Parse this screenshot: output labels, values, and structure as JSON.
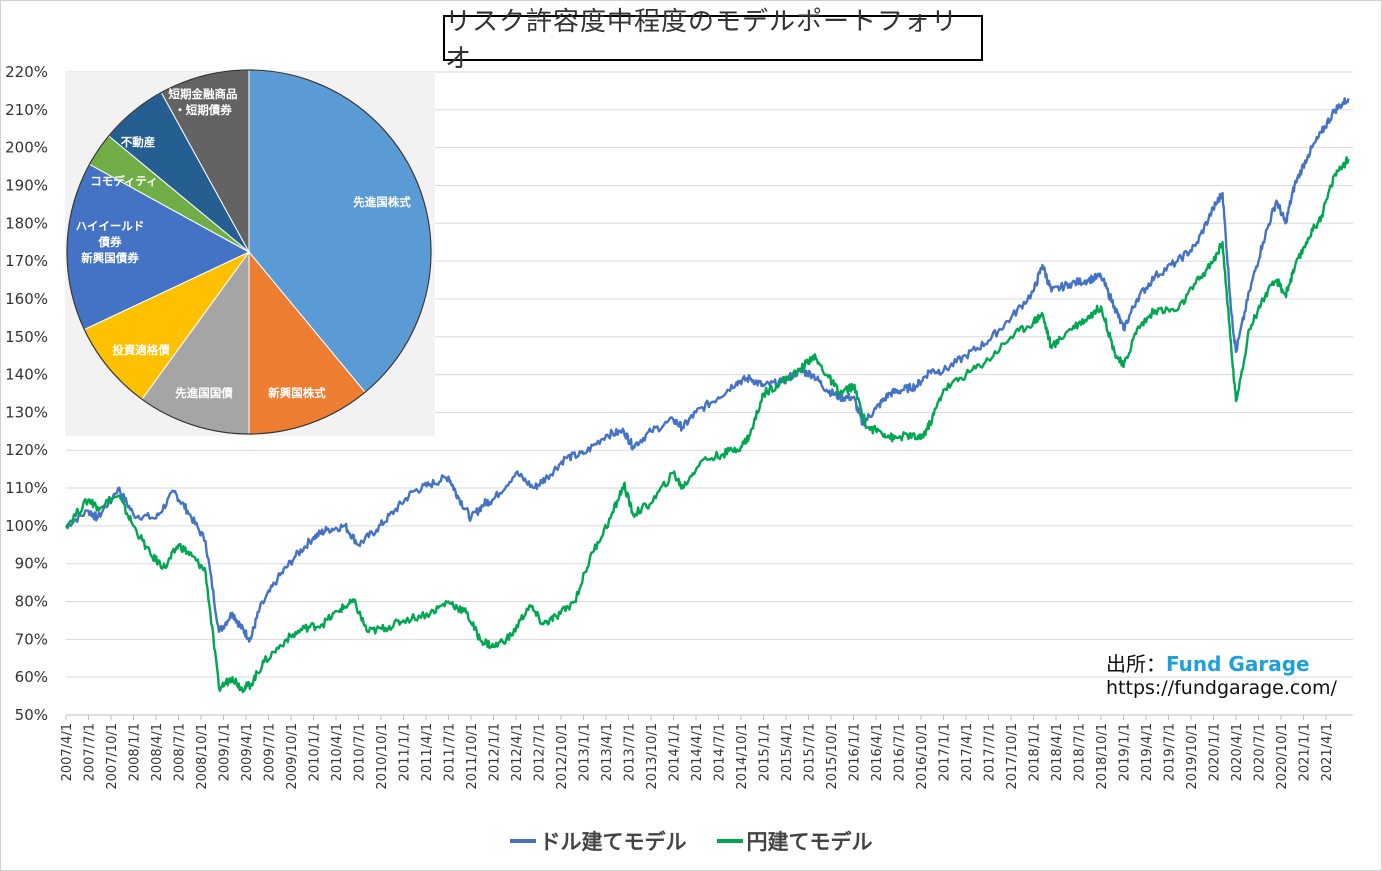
{
  "chart_data": [
    {
      "type": "line",
      "title": "リスク許容度中程度のモデルポートフォリオ",
      "y_ticks": [
        "50%",
        "60%",
        "70%",
        "80%",
        "90%",
        "100%",
        "110%",
        "120%",
        "130%",
        "140%",
        "150%",
        "160%",
        "170%",
        "180%",
        "190%",
        "200%",
        "210%",
        "220%"
      ],
      "ylim": [
        50,
        220
      ],
      "x_ticks": [
        "2007/4/1",
        "2007/7/1",
        "2007/10/1",
        "2008/1/1",
        "2008/4/1",
        "2008/7/1",
        "2008/10/1",
        "2009/1/1",
        "2009/4/1",
        "2009/7/1",
        "2009/10/1",
        "2010/1/1",
        "2010/4/1",
        "2010/7/1",
        "2010/10/1",
        "2011/1/1",
        "2011/4/1",
        "2011/7/1",
        "2011/10/1",
        "2012/1/1",
        "2012/4/1",
        "2012/7/1",
        "2012/10/1",
        "2013/1/1",
        "2013/4/1",
        "2013/7/1",
        "2013/10/1",
        "2014/1/1",
        "2014/4/1",
        "2014/7/1",
        "2014/10/1",
        "2015/1/1",
        "2015/4/1",
        "2015/7/1",
        "2015/10/1",
        "2016/1/1",
        "2016/4/1",
        "2016/7/1",
        "2016/10/1",
        "2017/1/1",
        "2017/4/1",
        "2017/7/1",
        "2017/10/1",
        "2018/1/1",
        "2018/4/1",
        "2018/7/1",
        "2018/10/1",
        "2019/1/1",
        "2019/4/1",
        "2019/7/1",
        "2019/10/1",
        "2020/1/1",
        "2020/4/1",
        "2020/7/1",
        "2020/10/1",
        "2021/1/1",
        "2021/4/1"
      ],
      "series": [
        {
          "name": "ドル建てモデル",
          "color": "#4472c4",
          "points": [
            [
              2007.25,
              100
            ],
            [
              2007.5,
              104
            ],
            [
              2007.6,
              102
            ],
            [
              2007.83,
              110
            ],
            [
              2008.0,
              103
            ],
            [
              2008.25,
              102
            ],
            [
              2008.45,
              109
            ],
            [
              2008.6,
              104
            ],
            [
              2008.8,
              96
            ],
            [
              2008.95,
              72
            ],
            [
              2009.1,
              77
            ],
            [
              2009.2,
              73
            ],
            [
              2009.3,
              70
            ],
            [
              2009.4,
              78
            ],
            [
              2009.6,
              86
            ],
            [
              2009.8,
              92
            ],
            [
              2010.0,
              97
            ],
            [
              2010.15,
              99
            ],
            [
              2010.35,
              100
            ],
            [
              2010.5,
              95
            ],
            [
              2010.7,
              99
            ],
            [
              2010.9,
              104
            ],
            [
              2011.1,
              109
            ],
            [
              2011.3,
              111
            ],
            [
              2011.5,
              113
            ],
            [
              2011.6,
              108
            ],
            [
              2011.75,
              102
            ],
            [
              2011.9,
              106
            ],
            [
              2012.0,
              107
            ],
            [
              2012.25,
              114
            ],
            [
              2012.45,
              110
            ],
            [
              2012.6,
              113
            ],
            [
              2012.8,
              118
            ],
            [
              2013.0,
              119
            ],
            [
              2013.25,
              124
            ],
            [
              2013.45,
              125
            ],
            [
              2013.55,
              121
            ],
            [
              2013.75,
              125
            ],
            [
              2014.0,
              128
            ],
            [
              2014.1,
              126
            ],
            [
              2014.25,
              130
            ],
            [
              2014.5,
              134
            ],
            [
              2014.7,
              138
            ],
            [
              2014.85,
              139
            ],
            [
              2015.0,
              137
            ],
            [
              2015.2,
              138
            ],
            [
              2015.4,
              141
            ],
            [
              2015.55,
              140
            ],
            [
              2015.7,
              136
            ],
            [
              2015.85,
              134
            ],
            [
              2016.0,
              134
            ],
            [
              2016.1,
              127
            ],
            [
              2016.25,
              131
            ],
            [
              2016.4,
              135
            ],
            [
              2016.55,
              136
            ],
            [
              2016.7,
              137
            ],
            [
              2016.85,
              141
            ],
            [
              2017.0,
              141
            ],
            [
              2017.25,
              145
            ],
            [
              2017.5,
              149
            ],
            [
              2017.75,
              155
            ],
            [
              2018.0,
              162
            ],
            [
              2018.1,
              169
            ],
            [
              2018.2,
              162
            ],
            [
              2018.4,
              164
            ],
            [
              2018.6,
              165
            ],
            [
              2018.75,
              166
            ],
            [
              2018.9,
              158
            ],
            [
              2019.0,
              152
            ],
            [
              2019.15,
              160
            ],
            [
              2019.35,
              166
            ],
            [
              2019.6,
              170
            ],
            [
              2019.8,
              174
            ],
            [
              2020.0,
              184
            ],
            [
              2020.1,
              188
            ],
            [
              2020.2,
              156
            ],
            [
              2020.25,
              146
            ],
            [
              2020.4,
              162
            ],
            [
              2020.55,
              175
            ],
            [
              2020.7,
              186
            ],
            [
              2020.8,
              180
            ],
            [
              2020.9,
              190
            ],
            [
              2021.05,
              198
            ],
            [
              2021.2,
              204
            ],
            [
              2021.35,
              210
            ],
            [
              2021.5,
              213
            ]
          ]
        },
        {
          "name": "円建てモデル",
          "color": "#00a650",
          "points": [
            [
              2007.25,
              100
            ],
            [
              2007.5,
              107
            ],
            [
              2007.6,
              105
            ],
            [
              2007.83,
              108
            ],
            [
              2008.0,
              100
            ],
            [
              2008.2,
              92
            ],
            [
              2008.35,
              89
            ],
            [
              2008.5,
              95
            ],
            [
              2008.65,
              92
            ],
            [
              2008.8,
              88
            ],
            [
              2008.95,
              57
            ],
            [
              2009.1,
              60
            ],
            [
              2009.2,
              57
            ],
            [
              2009.3,
              58
            ],
            [
              2009.45,
              64
            ],
            [
              2009.7,
              70
            ],
            [
              2009.9,
              73
            ],
            [
              2010.1,
              74
            ],
            [
              2010.3,
              78
            ],
            [
              2010.45,
              80
            ],
            [
              2010.6,
              72
            ],
            [
              2010.8,
              73
            ],
            [
              2011.0,
              75
            ],
            [
              2011.3,
              77
            ],
            [
              2011.5,
              80
            ],
            [
              2011.7,
              77
            ],
            [
              2011.85,
              70
            ],
            [
              2012.0,
              68
            ],
            [
              2012.2,
              71
            ],
            [
              2012.4,
              79
            ],
            [
              2012.55,
              74
            ],
            [
              2012.7,
              76
            ],
            [
              2012.9,
              80
            ],
            [
              2013.1,
              93
            ],
            [
              2013.3,
              102
            ],
            [
              2013.45,
              111
            ],
            [
              2013.55,
              103
            ],
            [
              2013.75,
              106
            ],
            [
              2014.0,
              114
            ],
            [
              2014.1,
              110
            ],
            [
              2014.3,
              117
            ],
            [
              2014.55,
              119
            ],
            [
              2014.75,
              121
            ],
            [
              2014.85,
              124
            ],
            [
              2015.0,
              135
            ],
            [
              2015.2,
              138
            ],
            [
              2015.4,
              141
            ],
            [
              2015.55,
              145
            ],
            [
              2015.7,
              140
            ],
            [
              2015.85,
              135
            ],
            [
              2016.0,
              137
            ],
            [
              2016.15,
              126
            ],
            [
              2016.3,
              125
            ],
            [
              2016.45,
              123
            ],
            [
              2016.6,
              124
            ],
            [
              2016.75,
              123
            ],
            [
              2016.85,
              127
            ],
            [
              2017.0,
              136
            ],
            [
              2017.25,
              140
            ],
            [
              2017.5,
              144
            ],
            [
              2017.75,
              150
            ],
            [
              2018.0,
              154
            ],
            [
              2018.1,
              156
            ],
            [
              2018.2,
              147
            ],
            [
              2018.4,
              152
            ],
            [
              2018.6,
              155
            ],
            [
              2018.75,
              158
            ],
            [
              2018.9,
              146
            ],
            [
              2019.0,
              142
            ],
            [
              2019.15,
              152
            ],
            [
              2019.35,
              157
            ],
            [
              2019.6,
              157
            ],
            [
              2019.8,
              164
            ],
            [
              2020.0,
              170
            ],
            [
              2020.1,
              175
            ],
            [
              2020.2,
              146
            ],
            [
              2020.25,
              133
            ],
            [
              2020.4,
              152
            ],
            [
              2020.55,
              160
            ],
            [
              2020.7,
              165
            ],
            [
              2020.8,
              161
            ],
            [
              2020.9,
              168
            ],
            [
              2021.05,
              176
            ],
            [
              2021.2,
              182
            ],
            [
              2021.35,
              193
            ],
            [
              2021.5,
              197
            ]
          ]
        }
      ],
      "xlim": [
        2007.25,
        2021.55
      ],
      "grid": true,
      "legend": "bottom"
    },
    {
      "type": "pie",
      "slices": [
        {
          "label": "先進国株式",
          "value": 39,
          "color": "#5b9bd5"
        },
        {
          "label": "新興国株式",
          "value": 11,
          "color": "#ed7d31"
        },
        {
          "label": "先進国国債",
          "value": 10,
          "color": "#a5a5a5"
        },
        {
          "label": "投資適格債",
          "value": 8,
          "color": "#ffc000"
        },
        {
          "label": "ハイイールド債券 新興国債券",
          "value": 15,
          "color": "#4472c4"
        },
        {
          "label": "コモディティ",
          "value": 3,
          "color": "#70ad47"
        },
        {
          "label": "不動産",
          "value": 6,
          "color": "#255e91"
        },
        {
          "label": "短期金融商品・短期債券",
          "value": 8,
          "color": "#636363"
        }
      ]
    }
  ],
  "source": {
    "prefix": "出所：",
    "brand": "Fund Garage",
    "url": "https://fundgarage.com/"
  }
}
